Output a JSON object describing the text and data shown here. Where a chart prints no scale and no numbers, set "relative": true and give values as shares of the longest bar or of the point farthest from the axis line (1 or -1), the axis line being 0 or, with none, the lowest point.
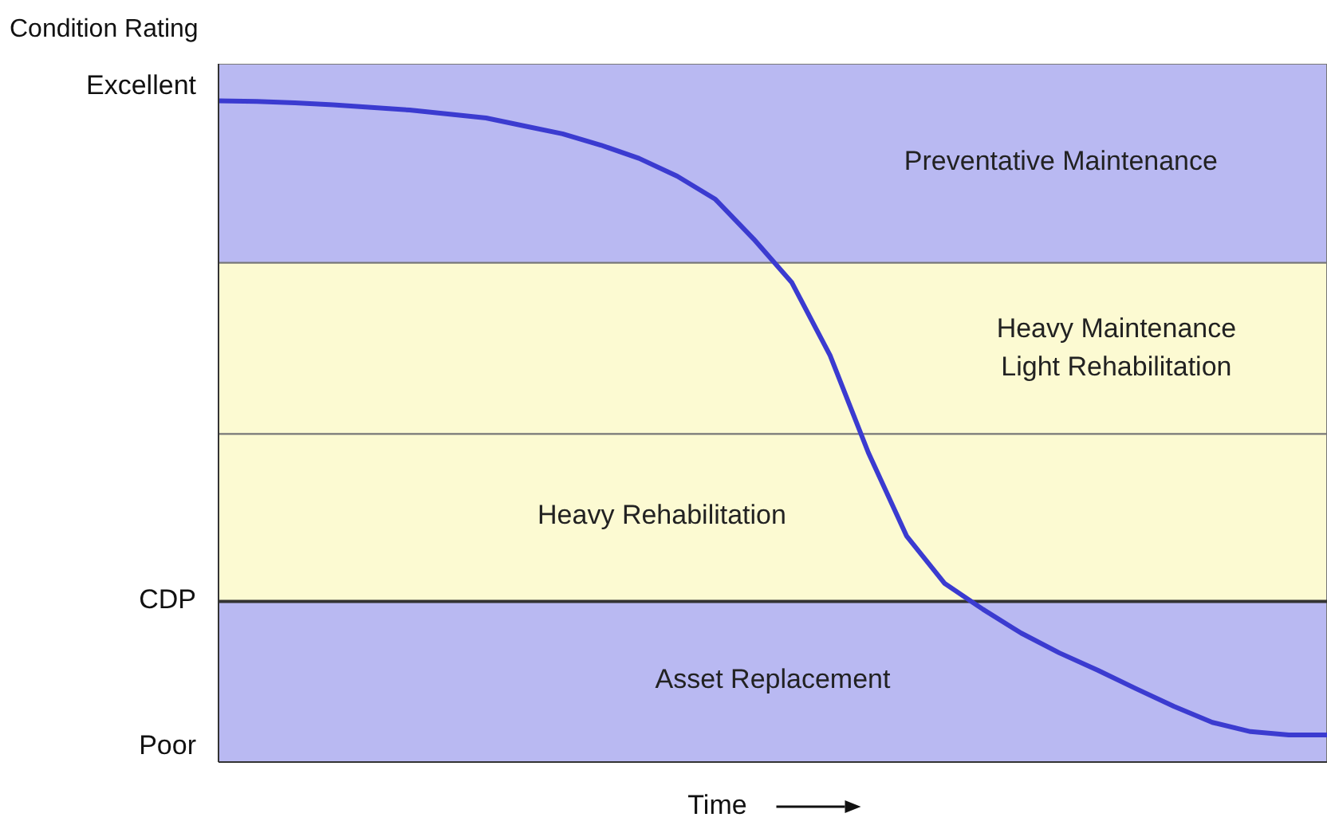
{
  "chart_data": {
    "type": "line",
    "xlabel": "Time",
    "ylabel": "Condition Rating",
    "relative": true,
    "categories": [
      null,
      null,
      null,
      null,
      null,
      null,
      null,
      null,
      null,
      null,
      null,
      null,
      null,
      null,
      null,
      null,
      null,
      null,
      null,
      null,
      null,
      null,
      null,
      null,
      null,
      null,
      null,
      null,
      null,
      null
    ],
    "series": [
      {
        "color": "#3b3bd0",
        "values": [
          1,
          0.999,
          0.997,
          0.994,
          0.99,
          0.986,
          0.98,
          0.974,
          0.962,
          0.95,
          0.933,
          0.913,
          0.886,
          0.851,
          0.791,
          0.725,
          0.615,
          0.468,
          0.342,
          0.27,
          0.231,
          0.195,
          0.165,
          0.139,
          0.111,
          0.084,
          0.06,
          0.046,
          0.041,
          0.041
        ]
      }
    ],
    "annotations": [
      "Excellent",
      "Poor"
    ],
    "bands": [
      {
        "axis": "y",
        "from": 0.755,
        "to": 1.056,
        "label": "Preventative Maintenance",
        "color": "#b9b9f2"
      },
      {
        "axis": "y",
        "from": 0.496,
        "to": 0.755,
        "label": "Heavy Maintenance\nLight Rehabilitation",
        "color": "#fcfad2"
      },
      {
        "axis": "y",
        "from": 0.243,
        "to": 0.496,
        "label": "Heavy Rehabilitation",
        "color": "#fcfad2"
      },
      {
        "axis": "y",
        "from": 0,
        "to": 0.243,
        "label": "Asset Replacement",
        "color": "#b9b9f2"
      }
    ],
    "ref_lines": [
      {
        "axis": "y",
        "value": 0.243,
        "label": "CDP",
        "color": "#333333"
      }
    ],
    "marker": "none",
    "line_style": "solid"
  }
}
